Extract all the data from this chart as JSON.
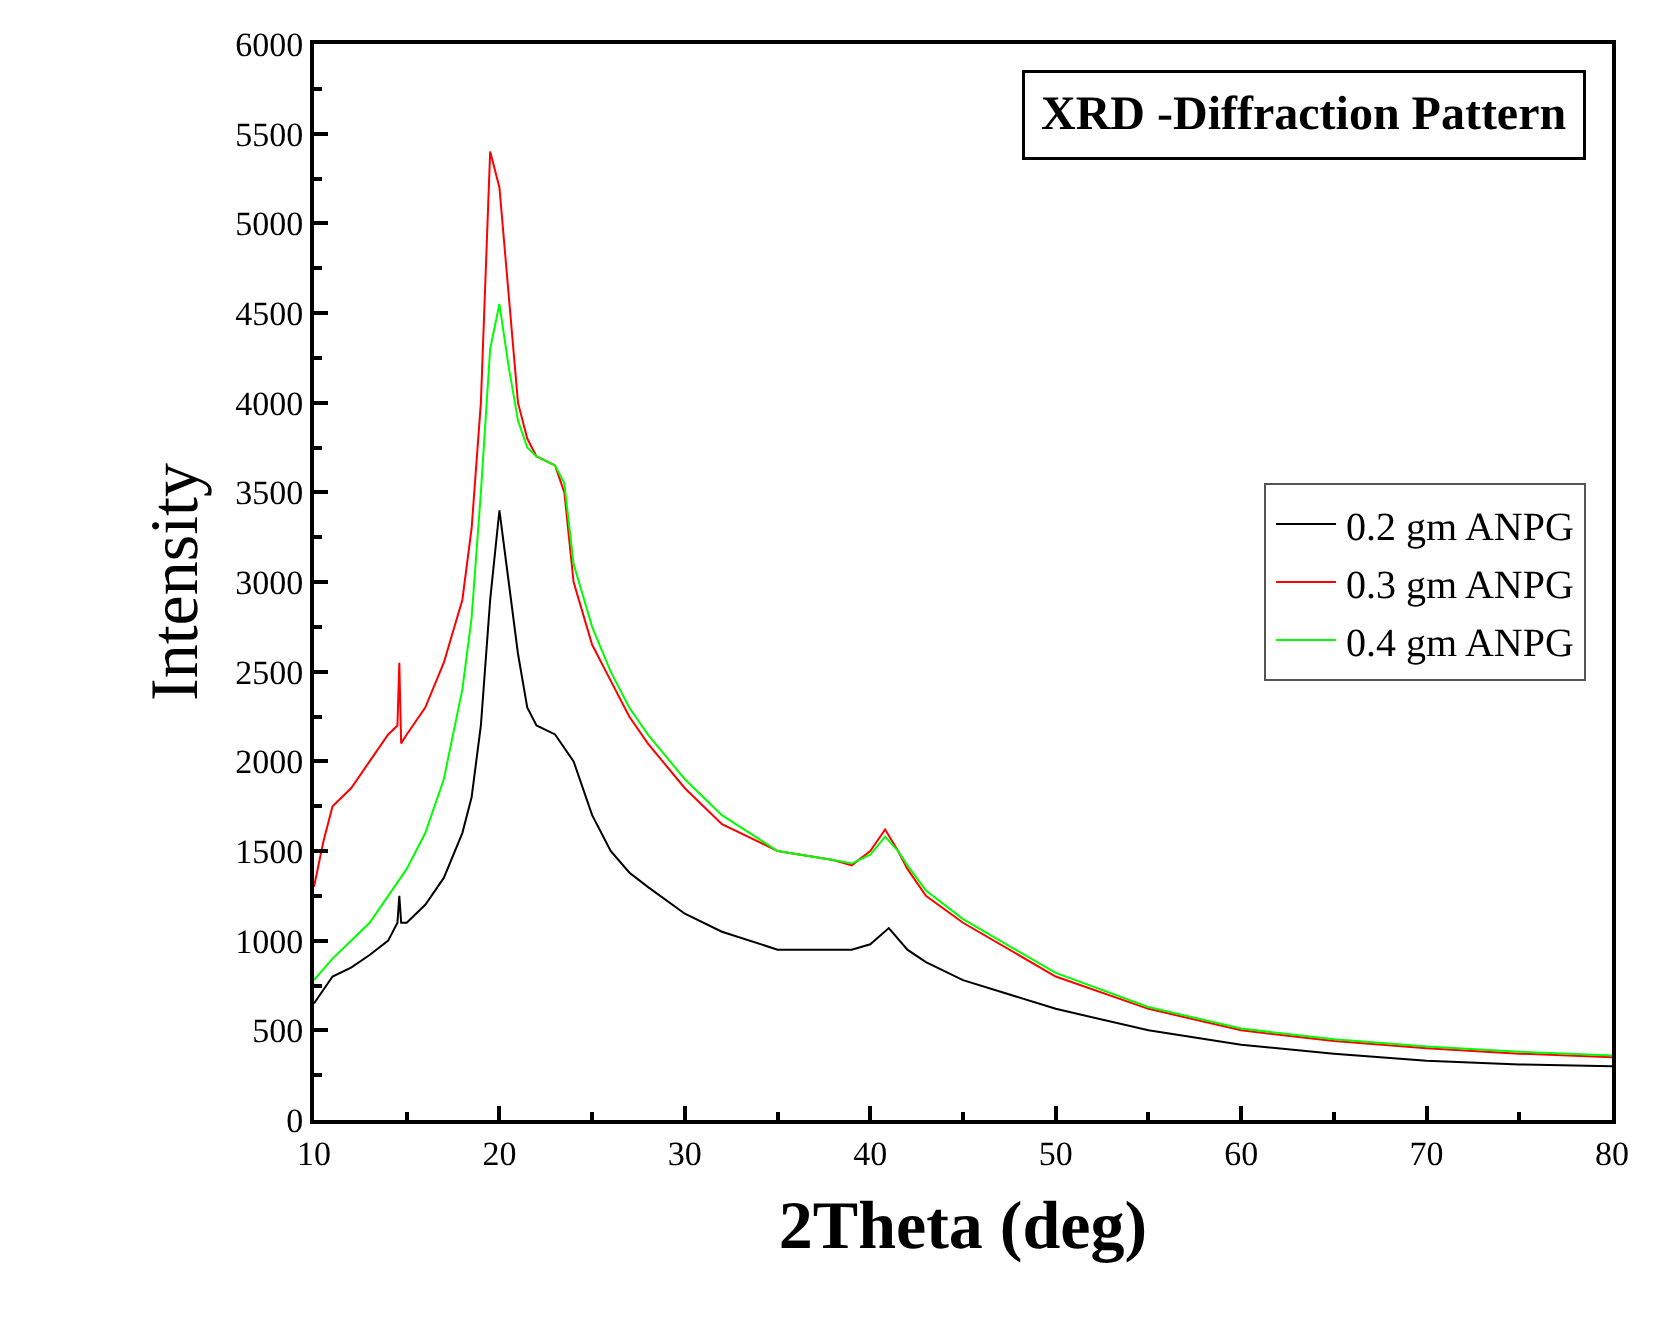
{
  "chart_data": {
    "type": "line",
    "title": "XRD -Diffraction Pattern",
    "xlabel": "2Theta (deg)",
    "ylabel": "Intensity",
    "xlim": [
      10,
      80
    ],
    "xticks": [
      10,
      20,
      30,
      40,
      50,
      60,
      70,
      80
    ],
    "ylim": [
      0,
      6000
    ],
    "yticks": [
      0,
      500,
      1000,
      1500,
      2000,
      2500,
      3000,
      3500,
      4000,
      4500,
      5000,
      5500,
      6000
    ],
    "legend": "right",
    "marker": "none",
    "line_style": "solid",
    "series": [
      {
        "name": "0.2 gm ANPG",
        "color": "#000000",
        "x": [
          10,
          11,
          12,
          13,
          14,
          14.5,
          14.6,
          14.7,
          15,
          16,
          17,
          18,
          18.5,
          19,
          19.5,
          20,
          20.5,
          21,
          21.5,
          22,
          23,
          24,
          25,
          26,
          27,
          28,
          30,
          32,
          35,
          38,
          39,
          40,
          41,
          42,
          43,
          45,
          50,
          55,
          60,
          65,
          70,
          75,
          80
        ],
        "values": [
          650,
          800,
          850,
          920,
          1000,
          1100,
          1250,
          1100,
          1100,
          1200,
          1350,
          1600,
          1800,
          2200,
          2900,
          3400,
          3000,
          2600,
          2300,
          2200,
          2150,
          2000,
          1700,
          1500,
          1380,
          1300,
          1150,
          1050,
          950,
          950,
          950,
          980,
          1070,
          950,
          880,
          780,
          620,
          500,
          420,
          370,
          330,
          310,
          300
        ]
      },
      {
        "name": "0.3 gm ANPG",
        "color": "#ff0000",
        "x": [
          10,
          10.5,
          11,
          12,
          13,
          14,
          14.5,
          14.6,
          14.7,
          15,
          16,
          17,
          18,
          18.5,
          19,
          19.5,
          20,
          20.5,
          21,
          21.5,
          22,
          23,
          23.5,
          24,
          25,
          26,
          27,
          28,
          30,
          32,
          35,
          38,
          39,
          40,
          40.8,
          41.5,
          42,
          43,
          45,
          50,
          55,
          60,
          65,
          70,
          75,
          80
        ],
        "values": [
          1300,
          1550,
          1750,
          1850,
          2000,
          2150,
          2200,
          2550,
          2100,
          2150,
          2300,
          2550,
          2900,
          3300,
          4000,
          5400,
          5200,
          4600,
          4000,
          3800,
          3700,
          3650,
          3500,
          3000,
          2650,
          2450,
          2250,
          2100,
          1850,
          1650,
          1500,
          1450,
          1420,
          1500,
          1620,
          1500,
          1400,
          1250,
          1100,
          800,
          620,
          500,
          440,
          400,
          370,
          350
        ]
      },
      {
        "name": "0.4 gm ANPG",
        "color": "#00ff00",
        "x": [
          10,
          11,
          12,
          13,
          14,
          15,
          16,
          17,
          18,
          18.5,
          19,
          19.5,
          20,
          20.5,
          21,
          21.5,
          22,
          23,
          23.5,
          24,
          25,
          26,
          27,
          28,
          30,
          32,
          35,
          38,
          39,
          40,
          40.8,
          41.5,
          42,
          43,
          45,
          50,
          55,
          60,
          65,
          70,
          75,
          80
        ],
        "values": [
          780,
          900,
          1000,
          1100,
          1250,
          1400,
          1600,
          1900,
          2400,
          2800,
          3500,
          4300,
          4550,
          4200,
          3900,
          3750,
          3700,
          3650,
          3550,
          3100,
          2750,
          2500,
          2300,
          2150,
          1900,
          1700,
          1500,
          1450,
          1430,
          1480,
          1580,
          1500,
          1420,
          1280,
          1120,
          820,
          630,
          510,
          450,
          410,
          380,
          360
        ]
      }
    ]
  }
}
